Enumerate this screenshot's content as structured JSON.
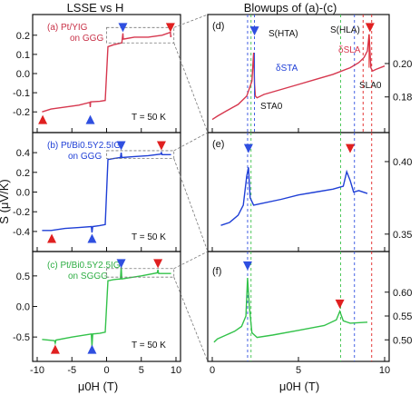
{
  "figure": {
    "left_title": "LSSE vs H",
    "right_title": "Blowups of (a)-(c)",
    "y_axis_label": "S (μV/K)",
    "x_axis_label_left": "μ0H (T)",
    "x_axis_label_right": "μ0H (T)",
    "temperature_label": "T = 50 K",
    "colors": {
      "a": "#d6374e",
      "b": "#1f3fd6",
      "c": "#33c24a",
      "blue_marker": "#2f4fe0",
      "red_marker": "#e02020",
      "ta_guide": "#2f4fe0",
      "la_guide": "#e02020"
    }
  },
  "annotations": {
    "s_hta": "S(HTA)",
    "delta_s_ta": "δSTA",
    "s_ta0": "STA0",
    "s_hla": "S(HLA)",
    "delta_s_la": "δSLA",
    "s_la0": "SLA0"
  },
  "chart_data": [
    {
      "panel": "a",
      "type": "line",
      "label_line1": "(a) Pt/YIG",
      "label_line2": "on GGG",
      "xlim": [
        -10,
        10
      ],
      "ylim": [
        -0.27,
        0.27
      ],
      "xticks": [
        -10,
        -5,
        0,
        5,
        10
      ],
      "yticks": [
        -0.2,
        -0.1,
        0.0,
        0.1,
        0.2
      ],
      "ytick_labels": [
        "-0.2",
        "-0.1",
        "0.0",
        "0.1",
        "0.2"
      ],
      "series": [
        {
          "x": [
            -9.3,
            -8,
            -6,
            -4,
            -2.4,
            -2.35,
            -2.3,
            -1,
            -0.2,
            0,
            0.2,
            1,
            2.2,
            2.35,
            2.4,
            2.5,
            4,
            6,
            8,
            9.2,
            9.25,
            9.3
          ],
          "y": [
            -0.2,
            -0.185,
            -0.175,
            -0.165,
            -0.15,
            -0.175,
            -0.148,
            -0.145,
            -0.14,
            0,
            0.14,
            0.15,
            0.16,
            0.21,
            0.18,
            0.18,
            0.19,
            0.19,
            0.2,
            0.215,
            0.19,
            0.2
          ]
        }
      ],
      "blue_markers": [
        [
          -2.35,
          -0.24
        ],
        [
          2.35,
          0.24
        ]
      ],
      "red_markers": [
        [
          -9.2,
          -0.24
        ],
        [
          9.2,
          0.24
        ]
      ],
      "zoom_box": {
        "x": [
          0,
          9.7
        ],
        "y": [
          0.16,
          0.24
        ]
      }
    },
    {
      "panel": "b",
      "type": "line",
      "label_line1": "(b) Pt/Bi0.5Y2.5IG",
      "label_line2": "on GGG",
      "xlim": [
        -10,
        10
      ],
      "ylim": [
        -0.53,
        0.53
      ],
      "xticks": [
        -10,
        -5,
        0,
        5,
        10
      ],
      "yticks": [
        -0.4,
        -0.2,
        0.0,
        0.2,
        0.4
      ],
      "ytick_labels": [
        "-0.4",
        "-0.2",
        "0.0",
        "0.2",
        "0.4"
      ],
      "series": [
        {
          "x": [
            -9.3,
            -8,
            -6,
            -4,
            -2.2,
            -2.1,
            -2.0,
            -1,
            -0.2,
            0,
            0.2,
            1,
            2.0,
            2.1,
            2.2,
            4,
            6,
            7.8,
            7.9,
            8.0,
            9.3
          ],
          "y": [
            -0.39,
            -0.39,
            -0.37,
            -0.36,
            -0.35,
            -0.41,
            -0.35,
            -0.34,
            -0.33,
            0,
            0.33,
            0.34,
            0.35,
            0.4,
            0.35,
            0.36,
            0.37,
            0.385,
            0.4,
            0.38,
            0.38
          ]
        }
      ],
      "blue_markers": [
        [
          -2.1,
          -0.47
        ],
        [
          2.1,
          0.47
        ]
      ],
      "red_markers": [
        [
          -7.9,
          -0.47
        ],
        [
          7.9,
          0.47
        ]
      ],
      "zoom_box": {
        "x": [
          0,
          9.7
        ],
        "y": [
          0.34,
          0.42
        ]
      }
    },
    {
      "panel": "c",
      "type": "line",
      "label_line1": "(c) Pt/Bi0.5Y2.5IG",
      "label_line2": "on SGGG",
      "xlim": [
        -10,
        10
      ],
      "ylim": [
        -0.78,
        0.78
      ],
      "xticks": [
        -10,
        -5,
        0,
        5,
        10
      ],
      "yticks": [
        -0.5,
        0.0,
        0.5
      ],
      "ytick_labels": [
        "-0.5",
        "0.0",
        "0.5"
      ],
      "series": [
        {
          "x": [
            -9.3,
            -7.5,
            -7.4,
            -7.3,
            -5,
            -2.2,
            -2.1,
            -2.0,
            -1,
            -0.2,
            0,
            0.2,
            1,
            2.0,
            2.1,
            2.2,
            5,
            7.3,
            7.4,
            7.5,
            9.3
          ],
          "y": [
            -0.54,
            -0.56,
            -0.6,
            -0.55,
            -0.5,
            -0.45,
            -0.65,
            -0.45,
            -0.44,
            -0.42,
            0,
            0.42,
            0.44,
            0.45,
            0.65,
            0.45,
            0.5,
            0.55,
            0.6,
            0.54,
            0.54
          ]
        }
      ],
      "blue_markers": [
        [
          -2.1,
          -0.7
        ],
        [
          2.1,
          0.7
        ]
      ],
      "red_markers": [
        [
          -7.4,
          -0.7
        ],
        [
          7.4,
          0.7
        ]
      ],
      "zoom_box": {
        "x": [
          0,
          9.7
        ],
        "y": [
          0.48,
          0.62
        ]
      }
    },
    {
      "panel": "d",
      "type": "line",
      "label": "(d)",
      "xlim": [
        0,
        10
      ],
      "ylim": [
        0.163,
        0.225
      ],
      "xticks": [
        0,
        5,
        10
      ],
      "yticks": [
        0.18,
        0.2
      ],
      "ytick_labels": [
        "0.18",
        "0.20"
      ],
      "series": [
        {
          "x": [
            0,
            0.3,
            0.8,
            1.5,
            2.0,
            2.3,
            2.4,
            2.45,
            2.5,
            2.6,
            3.0,
            4.0,
            5.0,
            6.0,
            7.0,
            8.0,
            8.5,
            8.8,
            9.0,
            9.1,
            9.2,
            9.3,
            9.5,
            10
          ],
          "y": [
            0.1665,
            0.1685,
            0.1715,
            0.1755,
            0.1805,
            0.1895,
            0.2065,
            0.1875,
            0.1805,
            0.1795,
            0.1815,
            0.1845,
            0.1875,
            0.1905,
            0.1935,
            0.1975,
            0.2005,
            0.2035,
            0.2075,
            0.2175,
            0.1975,
            0.1955,
            0.1965,
            0.1985
          ]
        }
      ],
      "blue_marker": [
        2.45,
        0.2195
      ],
      "red_marker": [
        9.15,
        0.2215
      ],
      "blue_lines": [
        2.05,
        2.45
      ],
      "red_lines": [
        8.75,
        9.25
      ],
      "green_lines": [
        2.25,
        7.45
      ],
      "extra_blue_lines": [
        8.25
      ]
    },
    {
      "panel": "e",
      "type": "line",
      "label": "(e)",
      "xlim": [
        0,
        10
      ],
      "ylim": [
        0.343,
        0.415
      ],
      "xticks": [
        0,
        5,
        10
      ],
      "yticks": [
        0.35,
        0.4
      ],
      "ytick_labels": [
        "0.35",
        "0.40"
      ],
      "series": [
        {
          "x": [
            0.5,
            1.0,
            1.5,
            1.8,
            2.0,
            2.1,
            2.2,
            2.4,
            2.8,
            4,
            5,
            6,
            7,
            7.6,
            7.8,
            8.0,
            8.2,
            8.5,
            9.0
          ],
          "y": [
            0.356,
            0.358,
            0.363,
            0.37,
            0.39,
            0.396,
            0.375,
            0.37,
            0.371,
            0.374,
            0.377,
            0.379,
            0.381,
            0.383,
            0.393,
            0.387,
            0.379,
            0.38,
            0.378
          ]
        }
      ],
      "blue_marker": [
        2.1,
        0.409
      ],
      "red_marker": [
        8.0,
        0.409
      ],
      "blue_lines": [
        2.05,
        8.25
      ],
      "red_lines": [
        9.25
      ],
      "green_lines": [
        2.25,
        7.45
      ]
    },
    {
      "panel": "f",
      "type": "line",
      "label": "(f)",
      "xlim": [
        0,
        10
      ],
      "ylim": [
        0.47,
        0.67
      ],
      "xticks": [
        0,
        5,
        10
      ],
      "yticks": [
        0.5,
        0.55,
        0.6
      ],
      "ytick_labels": [
        "0.50",
        "0.55",
        "0.60"
      ],
      "series": [
        {
          "x": [
            0.1,
            0.3,
            0.8,
            1.3,
            1.7,
            1.95,
            2.05,
            2.15,
            2.3,
            2.6,
            3.5,
            5,
            6.5,
            7.2,
            7.4,
            7.6,
            8.0,
            9.0
          ],
          "y": [
            0.495,
            0.502,
            0.51,
            0.518,
            0.528,
            0.55,
            0.63,
            0.57,
            0.515,
            0.505,
            0.51,
            0.52,
            0.53,
            0.542,
            0.56,
            0.54,
            0.535,
            0.537
          ]
        }
      ],
      "blue_marker": [
        2.05,
        0.655
      ],
      "red_marker": [
        7.4,
        0.575
      ],
      "blue_lines": [
        2.05,
        8.25
      ],
      "red_lines": [
        9.25
      ],
      "green_lines": [
        2.25,
        7.45
      ]
    }
  ]
}
